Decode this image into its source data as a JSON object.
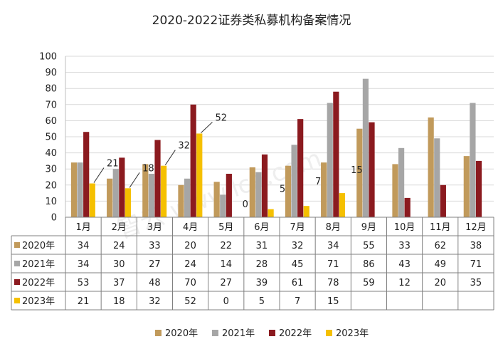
{
  "chart_data": {
    "type": "bar",
    "title": "2020-2022证券类私募机构备案情况",
    "categories": [
      "1月",
      "2月",
      "3月",
      "4月",
      "5月",
      "6月",
      "7月",
      "8月",
      "9月",
      "10月",
      "11月",
      "12月"
    ],
    "series": [
      {
        "name": "2020年",
        "color": "#c19a5b",
        "values": [
          34,
          24,
          33,
          20,
          22,
          31,
          32,
          34,
          55,
          33,
          62,
          38
        ]
      },
      {
        "name": "2021年",
        "color": "#a6a6a6",
        "values": [
          34,
          30,
          27,
          24,
          14,
          28,
          45,
          71,
          86,
          43,
          49,
          71
        ]
      },
      {
        "name": "2022年",
        "color": "#8b1a1f",
        "values": [
          53,
          37,
          48,
          70,
          27,
          39,
          61,
          78,
          59,
          12,
          20,
          35
        ]
      },
      {
        "name": "2023年",
        "color": "#f5c000",
        "values": [
          21,
          18,
          32,
          52,
          0,
          5,
          7,
          15,
          null,
          null,
          null,
          null
        ]
      }
    ],
    "data_labels_2023": [
      "21",
      "18",
      "32",
      "52",
      "0",
      "5",
      "7",
      "15"
    ],
    "ylim": [
      0,
      100
    ],
    "yticks": [
      "0",
      "10",
      "20",
      "30",
      "40",
      "50",
      "60",
      "70",
      "80",
      "90",
      "100"
    ],
    "legend_position": "bottom",
    "table": {
      "rows": [
        {
          "label": "2020年",
          "cells": [
            "34",
            "24",
            "33",
            "20",
            "22",
            "31",
            "32",
            "34",
            "55",
            "33",
            "62",
            "38"
          ]
        },
        {
          "label": "2021年",
          "cells": [
            "34",
            "30",
            "27",
            "24",
            "14",
            "28",
            "45",
            "71",
            "86",
            "43",
            "49",
            "71"
          ]
        },
        {
          "label": "2022年",
          "cells": [
            "53",
            "37",
            "48",
            "70",
            "27",
            "39",
            "61",
            "78",
            "59",
            "12",
            "20",
            "35"
          ]
        },
        {
          "label": "2023年",
          "cells": [
            "21",
            "18",
            "32",
            "52",
            "0",
            "5",
            "7",
            "15",
            "",
            "",
            "",
            ""
          ]
        }
      ]
    },
    "watermark": "智云 www.lca.com"
  }
}
